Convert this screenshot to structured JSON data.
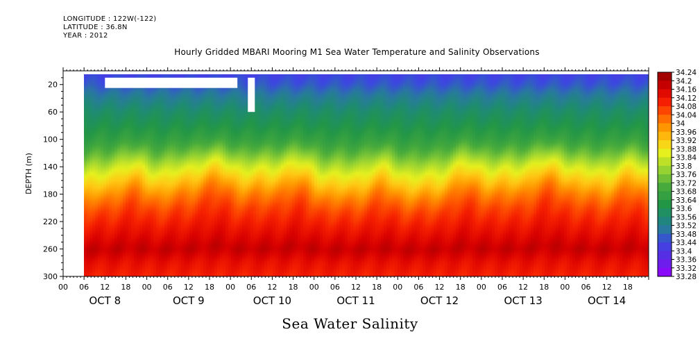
{
  "header": {
    "longitude": "LONGITUDE : 122W(-122)",
    "latitude": "LATITUDE : 36.8N",
    "year": "YEAR : 2012"
  },
  "chart_data": {
    "type": "heatmap",
    "title": "Hourly Gridded MBARI Mooring M1 Sea Water Temperature and Salinity Observations",
    "subtitle": "Sea Water Salinity",
    "ylabel": "DEPTH (m)",
    "xlabel": "",
    "ylim": [
      300,
      0
    ],
    "y_ticks": [
      20,
      60,
      100,
      140,
      180,
      220,
      260,
      300
    ],
    "x_range_hours": [
      "OCT 8 00",
      "OCT 14 24"
    ],
    "x_hour_ticks": [
      "00",
      "06",
      "12",
      "18",
      "00",
      "06",
      "12",
      "18",
      "00",
      "06",
      "12",
      "18",
      "00",
      "06",
      "12",
      "18",
      "00",
      "06",
      "12",
      "18",
      "00",
      "06",
      "12",
      "18",
      "00",
      "06",
      "12",
      "18"
    ],
    "x_day_labels": [
      "OCT  8",
      "OCT  9",
      "OCT 10",
      "OCT 11",
      "OCT 12",
      "OCT 13",
      "OCT 14"
    ],
    "data_start": "OCT 8 06",
    "colorbar": {
      "levels": [
        "34.24",
        "34.2",
        "34.16",
        "34.12",
        "34.08",
        "34.04",
        "34",
        "33.96",
        "33.92",
        "33.88",
        "33.84",
        "33.8",
        "33.76",
        "33.72",
        "33.68",
        "33.64",
        "33.6",
        "33.56",
        "33.52",
        "33.48",
        "33.44",
        "33.4",
        "33.36",
        "33.32",
        "33.28"
      ]
    },
    "depth_profile": {
      "depth": [
        5,
        20,
        40,
        60,
        80,
        100,
        120,
        140,
        160,
        180,
        200,
        220,
        240,
        260,
        280,
        300
      ],
      "salinity": [
        33.43,
        33.46,
        33.52,
        33.57,
        33.61,
        33.66,
        33.74,
        33.84,
        33.92,
        34.0,
        34.06,
        34.1,
        34.14,
        34.18,
        34.13,
        34.1
      ]
    },
    "missing_data": [
      {
        "from": "OCT 8 12",
        "to": "OCT 10 02",
        "depth": [
          10,
          25
        ]
      },
      {
        "from": "OCT 10 05",
        "to": "OCT 10 07",
        "depth": [
          10,
          60
        ]
      }
    ]
  }
}
